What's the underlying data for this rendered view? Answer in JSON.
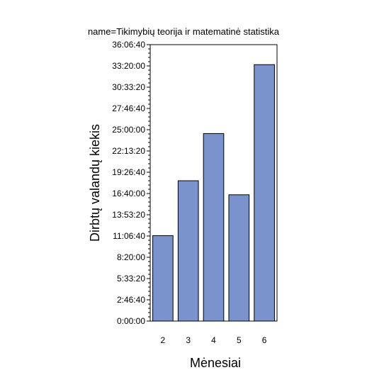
{
  "chart_data": {
    "type": "bar",
    "title": "name=Tikimybių teorija ir matematinė statistika",
    "xlabel": "Mėnesiai",
    "ylabel": "Dirbtų valandų kiekis",
    "value_unit": "seconds (displayed as h:mm:ss)",
    "categories": [
      "2",
      "3",
      "4",
      "5",
      "6"
    ],
    "values": [
      40200,
      66000,
      88200,
      59400,
      120600
    ],
    "ylim": [
      0,
      130000
    ],
    "y_ticks": [
      {
        "value": 0,
        "label": "0:00:00"
      },
      {
        "value": 10000,
        "label": "2:46:40"
      },
      {
        "value": 20000,
        "label": "5:33:20"
      },
      {
        "value": 30000,
        "label": "8:20:00"
      },
      {
        "value": 40000,
        "label": "11:06:40"
      },
      {
        "value": 50000,
        "label": "13:53:20"
      },
      {
        "value": 60000,
        "label": "16:40:00"
      },
      {
        "value": 70000,
        "label": "19:26:40"
      },
      {
        "value": 80000,
        "label": "22:13:20"
      },
      {
        "value": 90000,
        "label": "25:00:00"
      },
      {
        "value": 100000,
        "label": "27:46:40"
      },
      {
        "value": 110000,
        "label": "30:33:20"
      },
      {
        "value": 120000,
        "label": "33:20:00"
      },
      {
        "value": 130000,
        "label": "36:06:40"
      }
    ],
    "minor_ticks_per_major": 5,
    "grid": false,
    "legend": "none",
    "colors": {
      "bar_fill": "#7b93cc",
      "bar_stroke": "#000000",
      "axis": "#000000",
      "background": "#ffffff"
    }
  }
}
